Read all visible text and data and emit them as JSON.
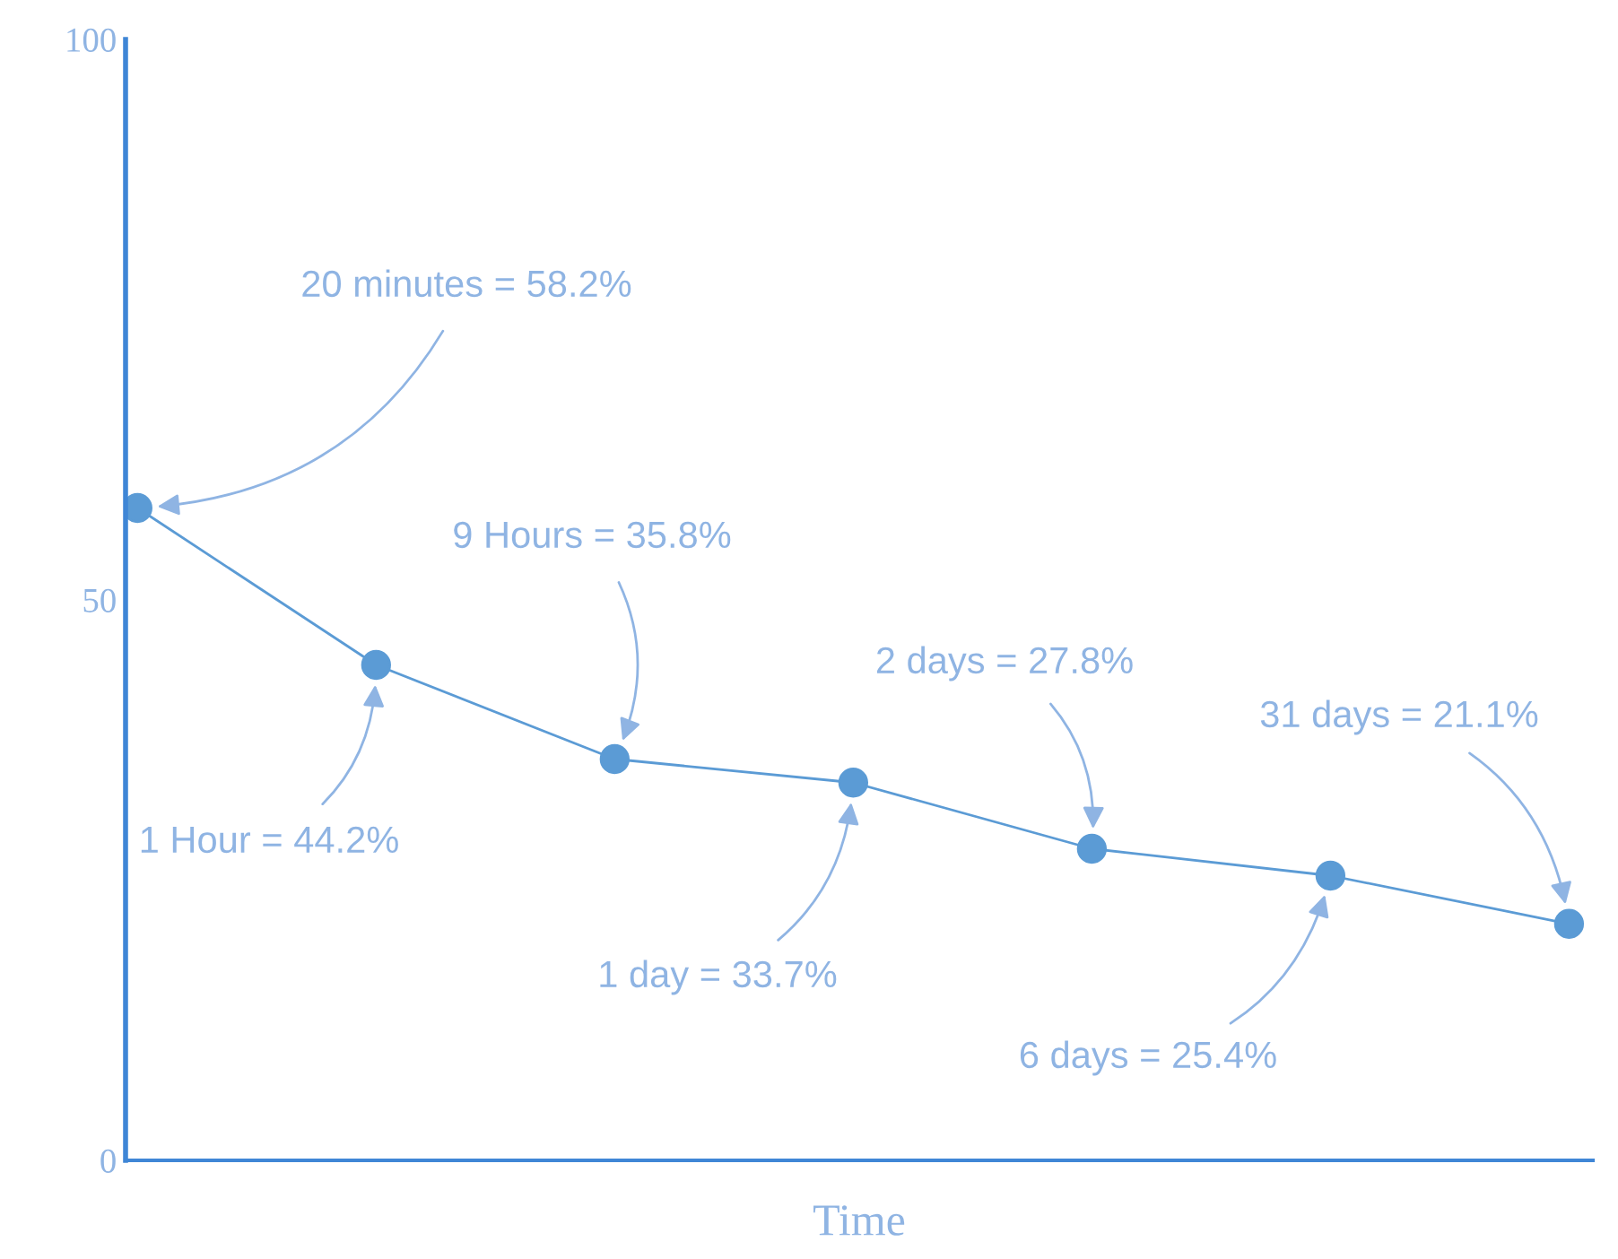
{
  "chart_data": {
    "type": "line",
    "xlabel": "Time",
    "categories": [
      null,
      null,
      null,
      null,
      null,
      null,
      null
    ],
    "values": [
      58.2,
      44.2,
      35.8,
      33.7,
      27.8,
      25.4,
      21.1
    ],
    "color": "#5b9bd5",
    "marker": "circle",
    "line_style": "solid",
    "ylim": [
      0,
      100
    ],
    "yticks": [
      0,
      50,
      100
    ],
    "annotations": [
      "20 minutes = 58.2%",
      "1 Hour = 44.2%",
      "9 Hours = 35.8%",
      "1 day = 33.7%",
      "2 days = 27.8%",
      "6 days = 25.4%",
      "31 days = 21.1%"
    ]
  }
}
